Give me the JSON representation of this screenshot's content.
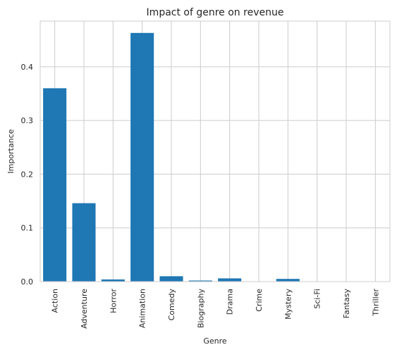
{
  "chart_data": {
    "type": "bar",
    "title": "Impact of genre on revenue",
    "xlabel": "Genre",
    "ylabel": "Importance",
    "categories": [
      "Action",
      "Adventure",
      "Horror",
      "Animation",
      "Comedy",
      "Biography",
      "Drama",
      "Crime",
      "Mystery",
      "Sci-Fi",
      "Fantasy",
      "Thriller"
    ],
    "values": [
      0.36,
      0.146,
      0.004,
      0.463,
      0.01,
      0.002,
      0.006,
      0.0,
      0.005,
      0.0,
      0.0,
      0.0
    ],
    "ylim": [
      0,
      0.485
    ],
    "yticks": [
      "0.0",
      "0.1",
      "0.2",
      "0.3",
      "0.4"
    ],
    "ytick_values": [
      0.0,
      0.1,
      0.2,
      0.3,
      0.4
    ],
    "grid": true,
    "colors": {
      "bar": "#1f77b4",
      "grid": "#cccccc"
    }
  }
}
